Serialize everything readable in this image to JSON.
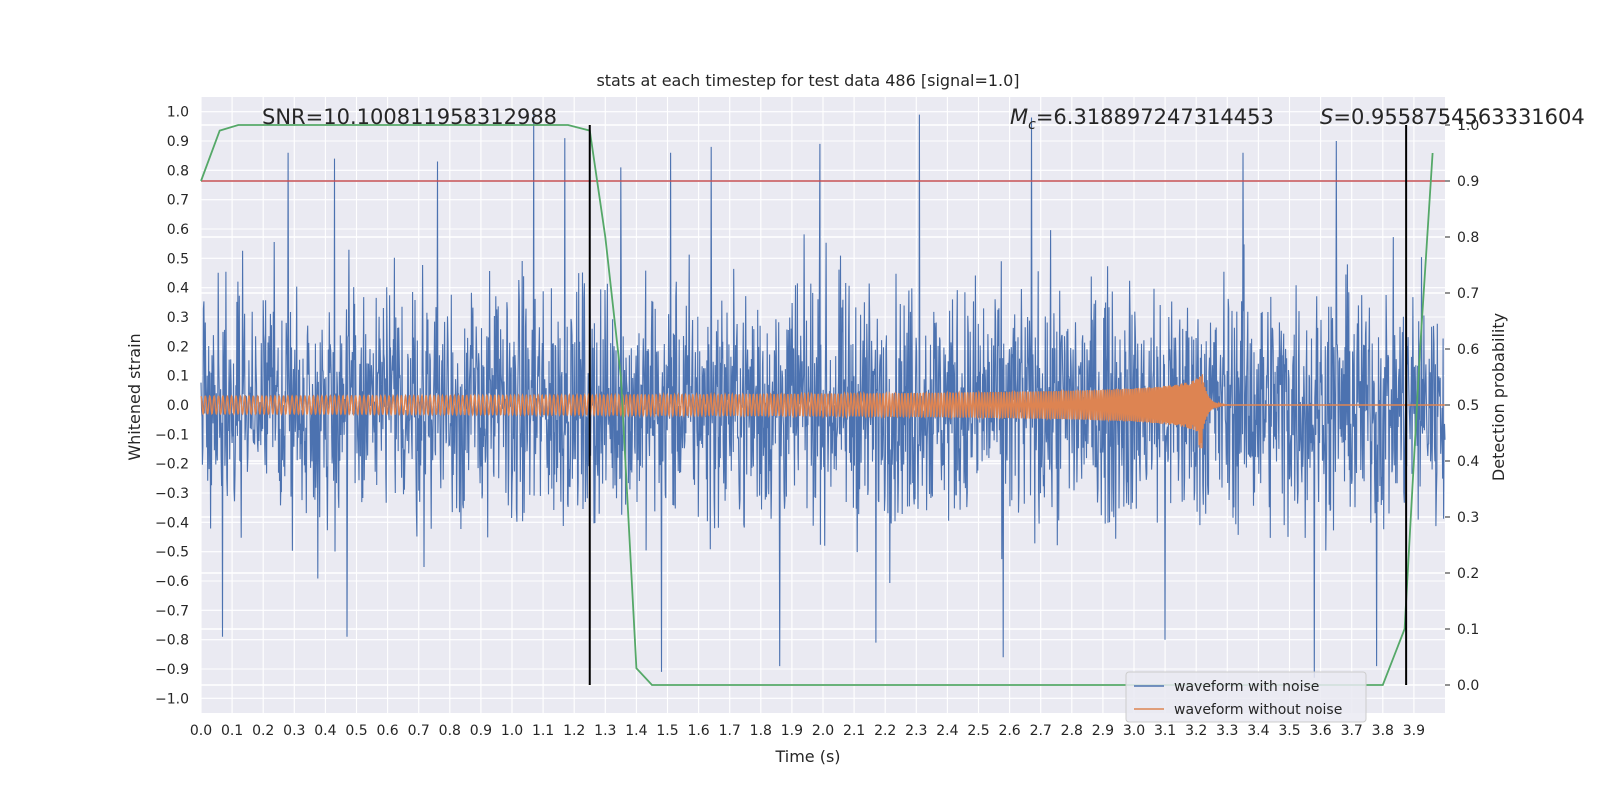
{
  "chart_data": {
    "type": "line",
    "title": "stats at each timestep for test data 486 [signal=1.0]",
    "xlabel": "Time (s)",
    "ylabel": "Whitened strain",
    "y2label": "Detection probability",
    "xlim": [
      0.0,
      4.0
    ],
    "ylim": [
      -1.05,
      1.05
    ],
    "y2lim": [
      -0.05,
      1.05
    ],
    "grid": true,
    "background": "#eaeaf2",
    "legend_position": "lower-right",
    "x_ticks": [
      "0.0",
      "0.1",
      "0.2",
      "0.3",
      "0.4",
      "0.5",
      "0.6",
      "0.7",
      "0.8",
      "0.9",
      "1.0",
      "1.1",
      "1.2",
      "1.3",
      "1.4",
      "1.5",
      "1.6",
      "1.7",
      "1.8",
      "1.9",
      "2.0",
      "2.1",
      "2.2",
      "2.3",
      "2.4",
      "2.5",
      "2.6",
      "2.7",
      "2.8",
      "2.9",
      "3.0",
      "3.1",
      "3.2",
      "3.3",
      "3.4",
      "3.5",
      "3.6",
      "3.7",
      "3.8",
      "3.9"
    ],
    "y_ticks": [
      "1.0",
      "0.9",
      "0.8",
      "0.7",
      "0.6",
      "0.5",
      "0.4",
      "0.3",
      "0.2",
      "0.1",
      "0.0",
      "−0.1",
      "−0.2",
      "−0.3",
      "−0.4",
      "−0.5",
      "−0.6",
      "−0.7",
      "−0.8",
      "−0.9",
      "−1.0"
    ],
    "y2_ticks": [
      "1.0",
      "0.9",
      "0.8",
      "0.7",
      "0.6",
      "0.5",
      "0.4",
      "0.3",
      "0.2",
      "0.1",
      "0.0"
    ],
    "annotations": {
      "snr": "SNR=10.100811958312988",
      "mc_symbol": "M",
      "mc_sub": "c",
      "mc_value": "=6.318897247314453",
      "s_symbol": "S",
      "s_value": "=0.9558754563331604"
    },
    "threshold": {
      "value": 0.9,
      "axis": "right",
      "color": "#c44e52"
    },
    "vertical_markers": [
      {
        "x": 1.25,
        "y_from": 0.0,
        "y_to": 1.0,
        "color": "#000000"
      },
      {
        "x": 3.875,
        "y_from": 0.0,
        "y_to": 1.0,
        "color": "#000000"
      }
    ],
    "series": [
      {
        "name": "waveform with noise",
        "color": "#4c72b0",
        "axis": "left",
        "kind": "noise",
        "typical_amplitude": 0.35,
        "peak_values": [
          {
            "x": 0.28,
            "y": 0.86
          },
          {
            "x": 0.43,
            "y": 0.84
          },
          {
            "x": 0.76,
            "y": 0.83
          },
          {
            "x": 1.07,
            "y": 1.0
          },
          {
            "x": 1.17,
            "y": 0.91
          },
          {
            "x": 1.35,
            "y": 0.81
          },
          {
            "x": 1.51,
            "y": 0.86
          },
          {
            "x": 1.64,
            "y": 0.88
          },
          {
            "x": 1.99,
            "y": 0.89
          },
          {
            "x": 2.31,
            "y": 0.99
          },
          {
            "x": 2.67,
            "y": 0.98
          },
          {
            "x": 3.35,
            "y": 0.86
          },
          {
            "x": 3.65,
            "y": 0.9
          },
          {
            "x": 0.07,
            "y": -0.79
          },
          {
            "x": 0.47,
            "y": -0.79
          },
          {
            "x": 1.48,
            "y": -0.91
          },
          {
            "x": 1.86,
            "y": -0.89
          },
          {
            "x": 2.17,
            "y": -0.81
          },
          {
            "x": 2.58,
            "y": -0.86
          },
          {
            "x": 3.1,
            "y": -0.8
          },
          {
            "x": 3.58,
            "y": -0.93
          },
          {
            "x": 3.78,
            "y": -0.89
          }
        ]
      },
      {
        "name": "waveform without noise",
        "color": "#dd8452",
        "axis": "left",
        "kind": "chirp",
        "merger_time": 3.22,
        "start_amplitude": 0.03,
        "peak_amplitude": 0.22,
        "min_value": -0.34
      },
      {
        "name": "",
        "color": "#55a868",
        "axis": "right",
        "kind": "line",
        "x": [
          0.0,
          0.06,
          0.12,
          0.2,
          0.3,
          0.5,
          0.8,
          1.0,
          1.18,
          1.25,
          1.3,
          1.35,
          1.4,
          1.45,
          1.5,
          1.7,
          2.0,
          2.5,
          3.0,
          3.2,
          3.5,
          3.7,
          3.8,
          3.87,
          3.92,
          3.96
        ],
        "y": [
          0.9,
          0.99,
          1.0,
          1.0,
          1.0,
          1.0,
          1.0,
          1.0,
          1.0,
          0.99,
          0.8,
          0.55,
          0.03,
          0.0,
          0.0,
          0.0,
          0.0,
          0.0,
          0.0,
          0.0,
          0.0,
          0.0,
          0.0,
          0.1,
          0.6,
          0.95
        ]
      }
    ]
  }
}
